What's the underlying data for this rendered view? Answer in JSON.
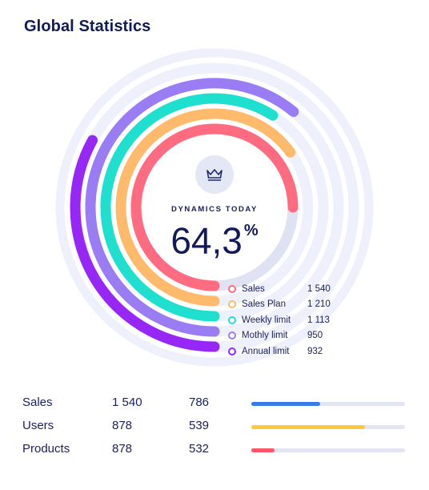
{
  "title": "Global Statistics",
  "chart_data": {
    "type": "radial-bar",
    "center": {
      "label": "DYNAMICS TODAY",
      "value": "64,3",
      "unit": "%",
      "icon": "crown-icon",
      "progress_fraction": 0.643
    },
    "series": [
      {
        "name": "Sales",
        "value": "1 540",
        "fraction": 0.75,
        "color": "#ff6b81"
      },
      {
        "name": "Sales Plan",
        "value": "1 210",
        "fraction": 0.65,
        "color": "#ffbb6b"
      },
      {
        "name": "Weekly limit",
        "value": "1 113",
        "fraction": 0.59,
        "color": "#1fe0cf"
      },
      {
        "name": "Mothly limit",
        "value": "950",
        "fraction": 0.61,
        "color": "#9a7cf5"
      },
      {
        "name": "Annual limit",
        "value": "932",
        "fraction": 0.33,
        "color": "#9727f7"
      }
    ],
    "track_color": "#eef0fb"
  },
  "stats": [
    {
      "name": "Sales",
      "v1": "1 540",
      "v2": "786",
      "fraction": 0.45,
      "color": "#3a7bea"
    },
    {
      "name": "Users",
      "v1": "878",
      "v2": "539",
      "fraction": 0.74,
      "color": "#ffc83d"
    },
    {
      "name": "Products",
      "v1": "878",
      "v2": "532",
      "fraction": 0.15,
      "color": "#ff5568"
    }
  ]
}
